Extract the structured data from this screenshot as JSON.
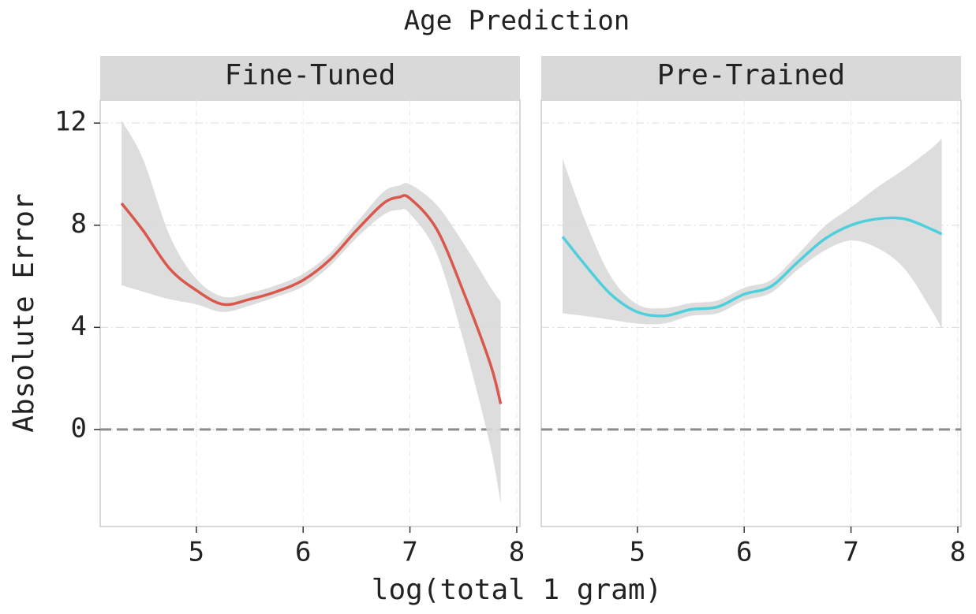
{
  "title": "Age Prediction",
  "xlabel": "log(total 1 gram)",
  "ylabel": "Absolute Error",
  "chart_data": [
    {
      "type": "line",
      "title": "Fine-Tuned",
      "xlim": [
        4.1,
        8.03
      ],
      "ylim": [
        -3.8,
        12.9
      ],
      "xticks": [
        5,
        6,
        7,
        8
      ],
      "yticks": [
        0,
        4,
        8,
        12
      ],
      "grid": true,
      "reference_line": 0,
      "series": [
        {
          "color": "#d9574c",
          "band_color": "#d9d9d9",
          "x": [
            4.3,
            4.5,
            4.75,
            5.0,
            5.25,
            5.5,
            5.75,
            6.0,
            6.25,
            6.5,
            6.75,
            6.9,
            7.0,
            7.25,
            7.5,
            7.75,
            7.85
          ],
          "values": [
            8.86,
            7.8,
            6.3,
            5.45,
            4.9,
            5.1,
            5.4,
            5.85,
            6.65,
            7.8,
            8.85,
            9.1,
            9.05,
            7.85,
            5.4,
            2.6,
            1.0
          ],
          "upper": [
            12.1,
            10.6,
            7.6,
            5.9,
            5.2,
            5.35,
            5.65,
            6.1,
            6.9,
            8.1,
            9.3,
            9.55,
            9.6,
            8.8,
            7.3,
            5.6,
            5.0
          ],
          "lower": [
            5.65,
            5.4,
            5.1,
            4.9,
            4.6,
            4.85,
            5.2,
            5.6,
            6.4,
            7.5,
            8.4,
            8.6,
            8.45,
            6.9,
            3.5,
            -0.6,
            -2.9
          ]
        }
      ]
    },
    {
      "type": "line",
      "title": "Pre-Trained",
      "xlim": [
        4.1,
        8.03
      ],
      "ylim": [
        -3.8,
        12.9
      ],
      "xticks": [
        5,
        6,
        7,
        8
      ],
      "yticks": [
        0,
        4,
        8,
        12
      ],
      "grid": true,
      "reference_line": 0,
      "series": [
        {
          "color": "#4ecfdc",
          "band_color": "#d9d9d9",
          "x": [
            4.3,
            4.5,
            4.75,
            5.0,
            5.25,
            5.5,
            5.75,
            6.0,
            6.25,
            6.5,
            6.75,
            7.0,
            7.25,
            7.5,
            7.75,
            7.85
          ],
          "values": [
            7.55,
            6.5,
            5.3,
            4.6,
            4.45,
            4.7,
            4.8,
            5.3,
            5.6,
            6.55,
            7.45,
            8.0,
            8.25,
            8.25,
            7.85,
            7.65
          ],
          "upper": [
            10.6,
            8.3,
            6.0,
            4.9,
            4.75,
            4.95,
            5.05,
            5.55,
            5.85,
            6.85,
            7.95,
            8.7,
            9.5,
            10.2,
            11.0,
            11.4
          ],
          "lower": [
            4.55,
            4.45,
            4.3,
            4.15,
            4.15,
            4.45,
            4.55,
            5.05,
            5.35,
            6.25,
            7.0,
            7.4,
            7.1,
            6.3,
            4.7,
            3.95
          ]
        }
      ]
    }
  ]
}
